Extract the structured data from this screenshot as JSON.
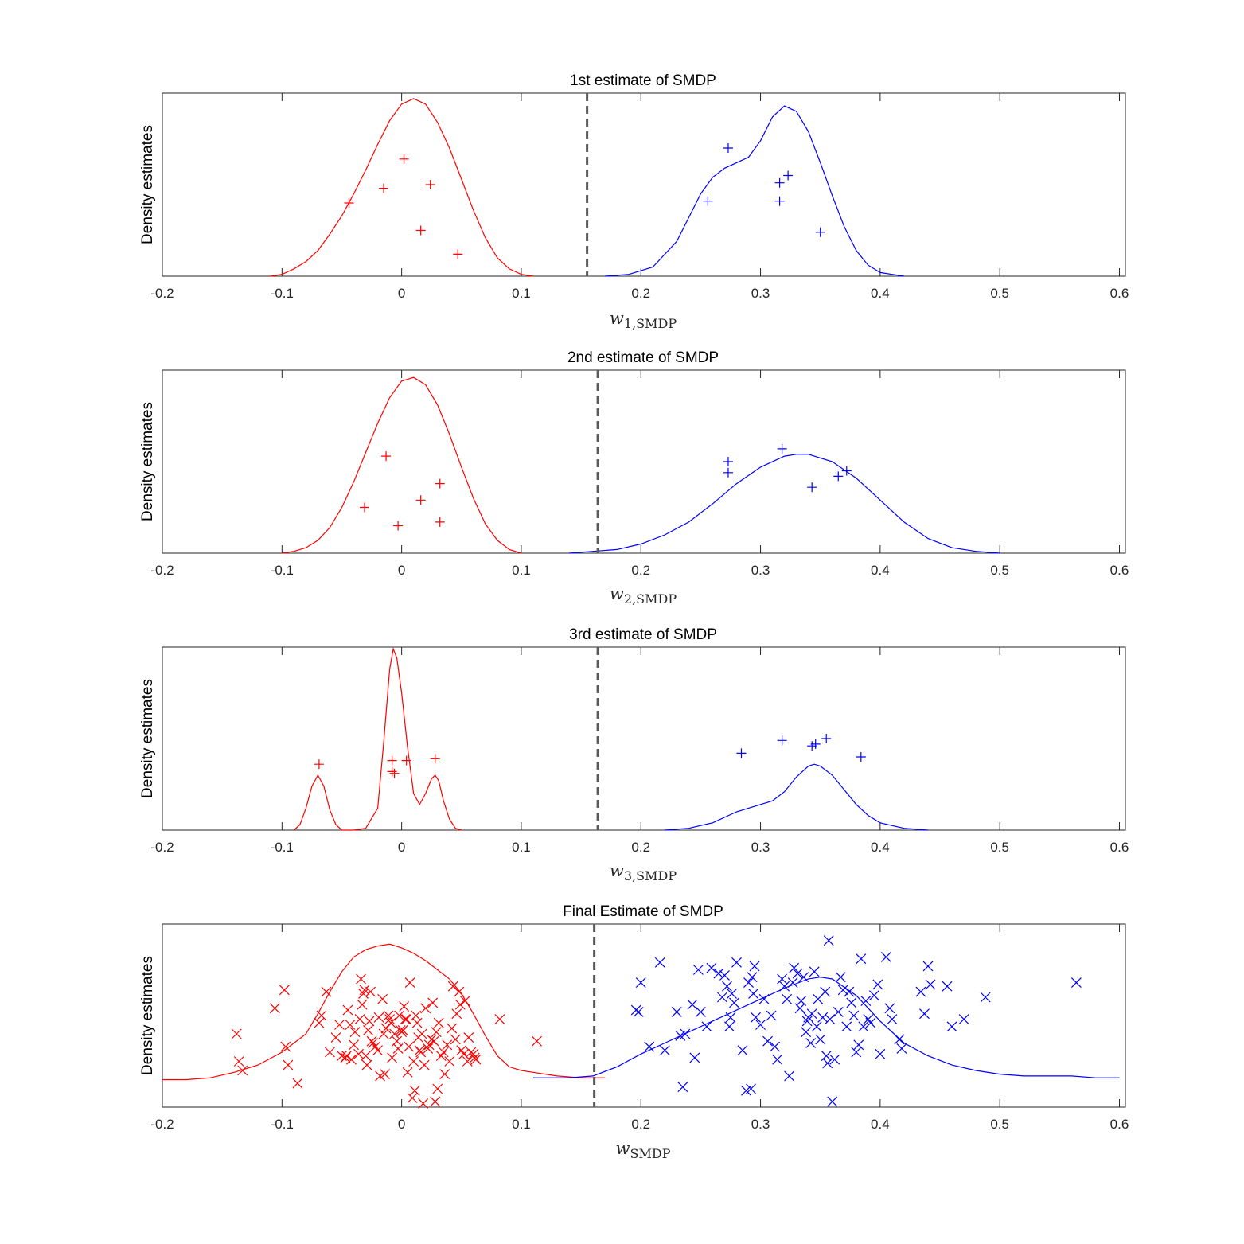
{
  "colors": {
    "group_a": "#ff0000",
    "group_b": "#0000ff",
    "threshold": "#595959",
    "axes": "#262626"
  },
  "chart_data": [
    {
      "type": "scatter",
      "title": "1st estimate of SMDP",
      "xlabel_var": "w",
      "xlabel_sub": "1,SMDP",
      "ylabel": "Density estimates",
      "xlim": [
        -0.2,
        0.605
      ],
      "xticks": [
        "-0.2",
        "-0.1",
        "0",
        "0.1",
        "0.2",
        "0.3",
        "0.4",
        "0.5",
        "0.6"
      ],
      "ylim": [
        0,
        1
      ],
      "threshold": 0.155,
      "marker": "plus",
      "curves": [
        {
          "color": "group_a",
          "x": [
            -0.11,
            -0.1,
            -0.09,
            -0.08,
            -0.07,
            -0.06,
            -0.05,
            -0.04,
            -0.03,
            -0.02,
            -0.01,
            0,
            0.01,
            0.02,
            0.03,
            0.04,
            0.05,
            0.06,
            0.07,
            0.08,
            0.09,
            0.1,
            0.11
          ],
          "y": [
            0,
            0.01,
            0.04,
            0.08,
            0.14,
            0.23,
            0.33,
            0.45,
            0.58,
            0.72,
            0.85,
            0.94,
            0.97,
            0.94,
            0.84,
            0.7,
            0.53,
            0.36,
            0.21,
            0.1,
            0.04,
            0.01,
            0
          ]
        },
        {
          "color": "group_b",
          "x": [
            0.17,
            0.19,
            0.21,
            0.23,
            0.24,
            0.25,
            0.26,
            0.27,
            0.28,
            0.29,
            0.3,
            0.31,
            0.32,
            0.33,
            0.34,
            0.35,
            0.36,
            0.37,
            0.38,
            0.39,
            0.4,
            0.41,
            0.42
          ],
          "y": [
            0,
            0.01,
            0.05,
            0.19,
            0.32,
            0.45,
            0.54,
            0.59,
            0.62,
            0.65,
            0.74,
            0.87,
            0.93,
            0.9,
            0.79,
            0.62,
            0.44,
            0.27,
            0.14,
            0.06,
            0.02,
            0.01,
            0
          ]
        }
      ],
      "points": [
        {
          "color": "group_a",
          "x": [
            -0.044,
            -0.015,
            0.002,
            0.016,
            0.024,
            0.047
          ],
          "y": [
            0.4,
            0.48,
            0.64,
            0.25,
            0.5,
            0.12
          ]
        },
        {
          "color": "group_b",
          "x": [
            0.256,
            0.273,
            0.316,
            0.316,
            0.323,
            0.35
          ],
          "y": [
            0.41,
            0.7,
            0.51,
            0.41,
            0.55,
            0.24
          ]
        }
      ]
    },
    {
      "type": "scatter",
      "title": "2nd estimate of SMDP",
      "xlabel_var": "w",
      "xlabel_sub": "2,SMDP",
      "ylabel": "Density estimates",
      "xlim": [
        -0.2,
        0.605
      ],
      "xticks": [
        "-0.2",
        "-0.1",
        "0",
        "0.1",
        "0.2",
        "0.3",
        "0.4",
        "0.5",
        "0.6"
      ],
      "ylim": [
        0,
        1
      ],
      "threshold": 0.164,
      "marker": "plus",
      "curves": [
        {
          "color": "group_a",
          "x": [
            -0.1,
            -0.09,
            -0.08,
            -0.07,
            -0.06,
            -0.05,
            -0.04,
            -0.03,
            -0.02,
            -0.01,
            0,
            0.01,
            0.02,
            0.03,
            0.04,
            0.05,
            0.06,
            0.07,
            0.08,
            0.09,
            0.1
          ],
          "y": [
            0,
            0.01,
            0.03,
            0.07,
            0.14,
            0.25,
            0.39,
            0.55,
            0.71,
            0.85,
            0.94,
            0.96,
            0.92,
            0.81,
            0.65,
            0.47,
            0.3,
            0.16,
            0.07,
            0.02,
            0
          ]
        },
        {
          "color": "group_b",
          "x": [
            0.14,
            0.16,
            0.18,
            0.2,
            0.22,
            0.24,
            0.26,
            0.28,
            0.3,
            0.32,
            0.33,
            0.34,
            0.36,
            0.38,
            0.4,
            0.42,
            0.44,
            0.46,
            0.48,
            0.5
          ],
          "y": [
            0,
            0.01,
            0.02,
            0.05,
            0.1,
            0.17,
            0.27,
            0.38,
            0.47,
            0.53,
            0.54,
            0.54,
            0.5,
            0.41,
            0.29,
            0.17,
            0.08,
            0.03,
            0.01,
            0
          ]
        }
      ],
      "points": [
        {
          "color": "group_a",
          "x": [
            -0.031,
            -0.013,
            -0.003,
            0.016,
            0.032,
            0.032
          ],
          "y": [
            0.25,
            0.53,
            0.15,
            0.29,
            0.38,
            0.17
          ]
        },
        {
          "color": "group_b",
          "x": [
            0.273,
            0.273,
            0.318,
            0.343,
            0.365,
            0.372
          ],
          "y": [
            0.5,
            0.44,
            0.57,
            0.36,
            0.42,
            0.45
          ]
        }
      ]
    },
    {
      "type": "scatter",
      "title": "3rd estimate of SMDP",
      "xlabel_var": "w",
      "xlabel_sub": "3,SMDP",
      "ylabel": "Density estimates",
      "xlim": [
        -0.2,
        0.605
      ],
      "xticks": [
        "-0.2",
        "-0.1",
        "0",
        "0.1",
        "0.2",
        "0.3",
        "0.4",
        "0.5",
        "0.6"
      ],
      "ylim": [
        0,
        1
      ],
      "threshold": 0.164,
      "marker": "plus",
      "curves": [
        {
          "color": "group_a",
          "x": [
            -0.09,
            -0.085,
            -0.08,
            -0.075,
            -0.07,
            -0.065,
            -0.06,
            -0.055,
            -0.05,
            -0.04,
            -0.03,
            -0.02,
            -0.015,
            -0.01,
            -0.007,
            -0.004,
            0,
            0.005,
            0.01,
            0.015,
            0.02,
            0.025,
            0.028,
            0.031,
            0.035,
            0.04,
            0.045,
            0.05
          ],
          "y": [
            0,
            0.03,
            0.12,
            0.24,
            0.3,
            0.24,
            0.11,
            0.03,
            0,
            0,
            0.01,
            0.12,
            0.48,
            0.88,
            0.99,
            0.94,
            0.75,
            0.45,
            0.2,
            0.14,
            0.2,
            0.28,
            0.3,
            0.27,
            0.16,
            0.06,
            0.01,
            0
          ]
        },
        {
          "color": "group_b",
          "x": [
            0.22,
            0.24,
            0.26,
            0.28,
            0.3,
            0.31,
            0.32,
            0.33,
            0.34,
            0.345,
            0.35,
            0.36,
            0.37,
            0.38,
            0.39,
            0.4,
            0.42,
            0.44
          ],
          "y": [
            0,
            0.01,
            0.04,
            0.1,
            0.14,
            0.16,
            0.21,
            0.29,
            0.35,
            0.36,
            0.35,
            0.3,
            0.22,
            0.14,
            0.08,
            0.04,
            0.01,
            0
          ]
        }
      ],
      "points": [
        {
          "color": "group_a",
          "x": [
            -0.069,
            -0.008,
            -0.008,
            -0.006,
            0.004,
            0.028
          ],
          "y": [
            0.36,
            0.38,
            0.32,
            0.31,
            0.38,
            0.39
          ]
        },
        {
          "color": "group_b",
          "x": [
            0.284,
            0.318,
            0.343,
            0.346,
            0.355,
            0.384
          ],
          "y": [
            0.42,
            0.49,
            0.46,
            0.47,
            0.5,
            0.4
          ]
        }
      ]
    },
    {
      "type": "scatter",
      "title": "Final Estimate of SMDP",
      "xlabel_var": "w",
      "xlabel_sub": "SMDP",
      "ylabel": "Density estimates",
      "xlim": [
        -0.2,
        0.605
      ],
      "xticks": [
        "-0.2",
        "-0.1",
        "0",
        "0.1",
        "0.2",
        "0.3",
        "0.4",
        "0.5",
        "0.6"
      ],
      "ylim": [
        0,
        1
      ],
      "threshold": 0.161,
      "marker": "cross",
      "curves": [
        {
          "color": "group_a",
          "x": [
            -0.2,
            -0.18,
            -0.16,
            -0.14,
            -0.12,
            -0.1,
            -0.08,
            -0.07,
            -0.06,
            -0.05,
            -0.04,
            -0.03,
            -0.02,
            -0.01,
            0,
            0.01,
            0.02,
            0.03,
            0.04,
            0.05,
            0.06,
            0.07,
            0.08,
            0.09,
            0.1,
            0.11,
            0.12,
            0.13,
            0.15,
            0.17
          ],
          "y": [
            0.15,
            0.15,
            0.16,
            0.19,
            0.23,
            0.3,
            0.4,
            0.51,
            0.63,
            0.74,
            0.82,
            0.86,
            0.88,
            0.89,
            0.87,
            0.84,
            0.8,
            0.75,
            0.7,
            0.62,
            0.51,
            0.39,
            0.28,
            0.22,
            0.2,
            0.19,
            0.18,
            0.17,
            0.16,
            0.16
          ]
        },
        {
          "color": "group_b",
          "x": [
            0.11,
            0.14,
            0.16,
            0.18,
            0.2,
            0.22,
            0.24,
            0.26,
            0.28,
            0.3,
            0.32,
            0.34,
            0.35,
            0.36,
            0.38,
            0.4,
            0.42,
            0.44,
            0.46,
            0.48,
            0.5,
            0.52,
            0.54,
            0.56,
            0.58,
            0.6
          ],
          "y": [
            0.16,
            0.16,
            0.17,
            0.22,
            0.29,
            0.35,
            0.41,
            0.47,
            0.53,
            0.59,
            0.65,
            0.7,
            0.71,
            0.7,
            0.61,
            0.47,
            0.35,
            0.28,
            0.23,
            0.2,
            0.18,
            0.17,
            0.17,
            0.17,
            0.16,
            0.16
          ]
        }
      ],
      "points": [
        {
          "color": "group_a",
          "x": [
            -0.138,
            -0.136,
            -0.133,
            -0.106,
            -0.098,
            -0.097,
            -0.095,
            -0.087,
            -0.069,
            -0.067,
            -0.063,
            -0.06,
            -0.055,
            -0.052,
            -0.05,
            -0.047,
            -0.046,
            -0.045,
            -0.043,
            -0.042,
            -0.04,
            -0.039,
            -0.036,
            -0.035,
            -0.034,
            -0.033,
            -0.032,
            -0.031,
            -0.03,
            -0.029,
            -0.028,
            -0.027,
            -0.026,
            -0.025,
            -0.024,
            -0.022,
            -0.02,
            -0.019,
            -0.018,
            -0.016,
            -0.015,
            -0.014,
            -0.013,
            -0.011,
            -0.01,
            -0.009,
            -0.008,
            -0.006,
            -0.004,
            -0.003,
            -0.002,
            -0.001,
            0,
            0.001,
            0.002,
            0.003,
            0.004,
            0.005,
            0.006,
            0.007,
            0.009,
            0.01,
            0.011,
            0.012,
            0.013,
            0.014,
            0.015,
            0.016,
            0.017,
            0.018,
            0.019,
            0.02,
            0.022,
            0.023,
            0.025,
            0.026,
            0.027,
            0.028,
            0.029,
            0.03,
            0.031,
            0.033,
            0.035,
            0.036,
            0.038,
            0.04,
            0.042,
            0.043,
            0.045,
            0.046,
            0.048,
            0.049,
            0.05,
            0.052,
            0.053,
            0.055,
            0.056,
            0.058,
            0.06,
            0.061,
            0.062,
            0.082,
            0.113
          ],
          "y": [
            0.4,
            0.25,
            0.2,
            0.54,
            0.64,
            0.33,
            0.23,
            0.13,
            0.46,
            0.5,
            0.63,
            0.3,
            0.38,
            0.45,
            0.28,
            0.27,
            0.28,
            0.53,
            0.45,
            0.26,
            0.34,
            0.41,
            0.29,
            0.48,
            0.7,
            0.56,
            0.62,
            0.64,
            0.28,
            0.23,
            0.42,
            0.47,
            0.63,
            0.36,
            0.35,
            0.33,
            0.31,
            0.49,
            0.17,
            0.59,
            0.4,
            0.18,
            0.43,
            0.5,
            0.48,
            0.46,
            0.27,
            0.4,
            0.36,
            0.32,
            0.5,
            0.42,
            0.41,
            0.42,
            0.55,
            0.48,
            0.48,
            0.19,
            0.33,
            0.68,
            0.05,
            0.25,
            0.09,
            0.5,
            0.46,
            0.38,
            0.31,
            0.3,
            0.4,
            0.02,
            0.23,
            0.54,
            0.32,
            0.34,
            0.37,
            0.57,
            0.36,
            0.03,
            0.41,
            0.1,
            0.46,
            0.28,
            0.3,
            0.18,
            0.34,
            0.25,
            0.43,
            0.66,
            0.37,
            0.51,
            0.63,
            0.56,
            0.31,
            0.29,
            0.58,
            0.25,
            0.38,
            0.3,
            0.29,
            0.27,
            0.26,
            0.48,
            0.36
          ]
        },
        {
          "color": "group_b",
          "x": [
            0.196,
            0.198,
            0.2,
            0.207,
            0.216,
            0.22,
            0.23,
            0.233,
            0.235,
            0.237,
            0.243,
            0.245,
            0.248,
            0.25,
            0.255,
            0.259,
            0.265,
            0.268,
            0.27,
            0.272,
            0.274,
            0.275,
            0.276,
            0.278,
            0.28,
            0.285,
            0.288,
            0.29,
            0.292,
            0.293,
            0.294,
            0.295,
            0.296,
            0.3,
            0.303,
            0.306,
            0.309,
            0.312,
            0.314,
            0.318,
            0.32,
            0.322,
            0.324,
            0.327,
            0.328,
            0.331,
            0.333,
            0.334,
            0.336,
            0.338,
            0.339,
            0.34,
            0.342,
            0.343,
            0.345,
            0.347,
            0.348,
            0.35,
            0.352,
            0.354,
            0.355,
            0.356,
            0.357,
            0.358,
            0.36,
            0.362,
            0.365,
            0.367,
            0.369,
            0.372,
            0.374,
            0.376,
            0.378,
            0.38,
            0.382,
            0.384,
            0.386,
            0.388,
            0.39,
            0.392,
            0.395,
            0.398,
            0.4,
            0.405,
            0.408,
            0.41,
            0.416,
            0.418,
            0.434,
            0.437,
            0.44,
            0.442,
            0.456,
            0.46,
            0.47,
            0.488,
            0.564
          ],
          "y": [
            0.53,
            0.52,
            0.68,
            0.33,
            0.79,
            0.31,
            0.52,
            0.39,
            0.11,
            0.4,
            0.56,
            0.27,
            0.75,
            0.52,
            0.44,
            0.76,
            0.73,
            0.6,
            0.72,
            0.66,
            0.44,
            0.49,
            0.62,
            0.57,
            0.79,
            0.31,
            0.09,
            0.68,
            0.1,
            0.71,
            0.62,
            0.77,
            0.49,
            0.45,
            0.59,
            0.36,
            0.5,
            0.33,
            0.26,
            0.7,
            0.66,
            0.59,
            0.17,
            0.68,
            0.76,
            0.73,
            0.54,
            0.58,
            0.71,
            0.41,
            0.47,
            0.49,
            0.35,
            0.51,
            0.74,
            0.44,
            0.59,
            0.37,
            0.49,
            0.63,
            0.28,
            0.24,
            0.91,
            0.48,
            0.03,
            0.26,
            0.52,
            0.71,
            0.64,
            0.44,
            0.63,
            0.57,
            0.5,
            0.3,
            0.34,
            0.81,
            0.44,
            0.58,
            0.48,
            0.46,
            0.61,
            0.67,
            0.29,
            0.82,
            0.54,
            0.48,
            0.37,
            0.32,
            0.63,
            0.51,
            0.77,
            0.67,
            0.66,
            0.44,
            0.48,
            0.6,
            0.68
          ]
        }
      ]
    }
  ]
}
